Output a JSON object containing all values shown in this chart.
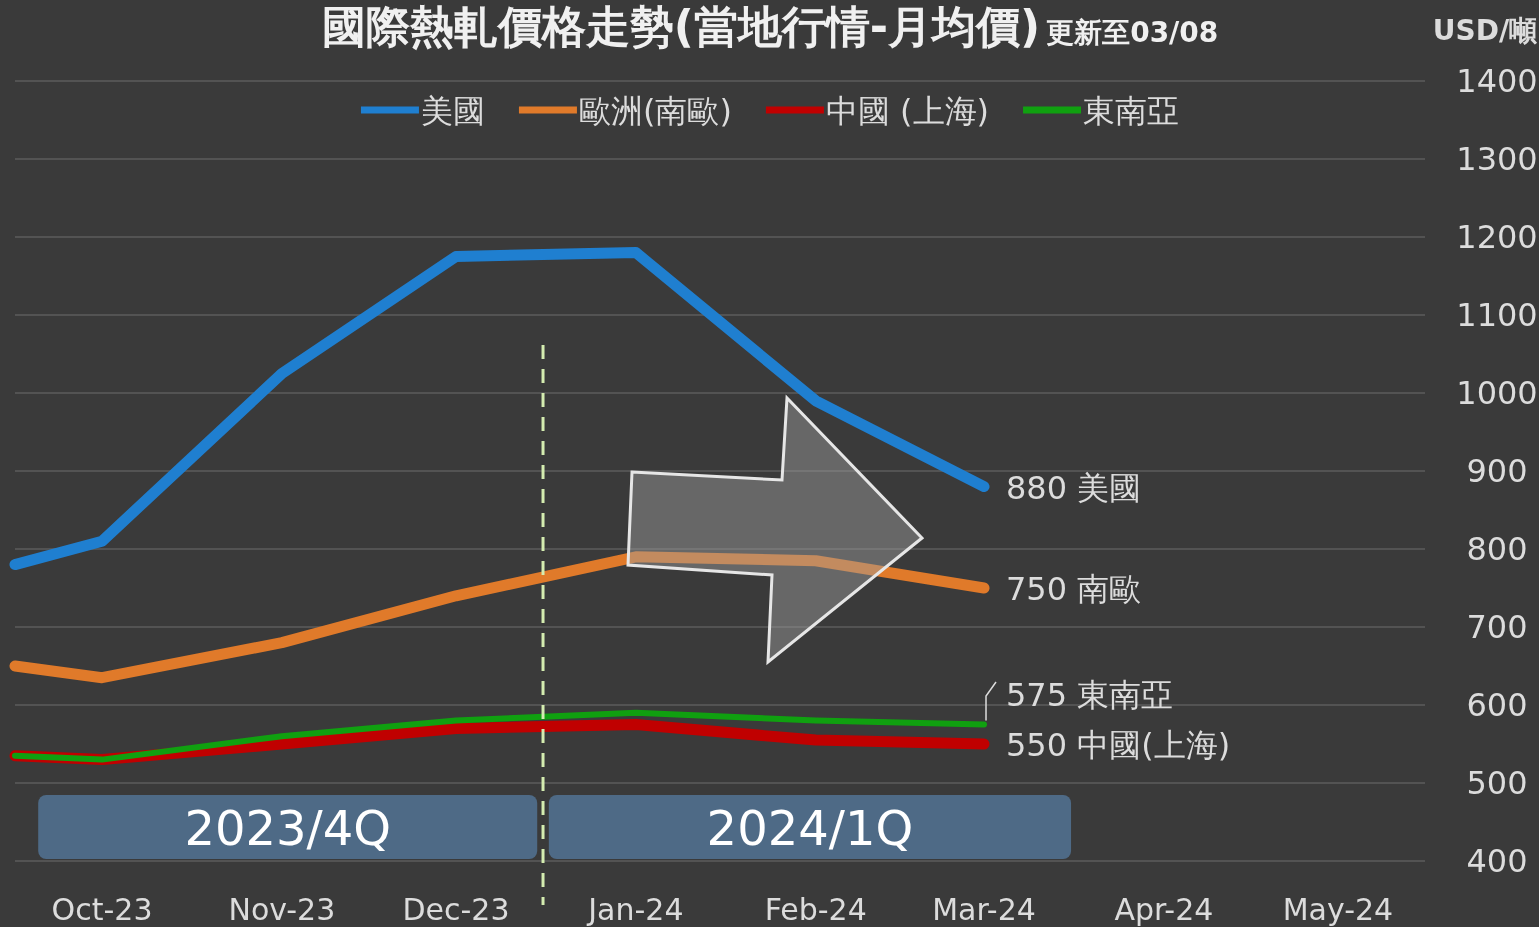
{
  "chart_data": {
    "type": "line",
    "title": "國際熱軋價格走勢(當地行情-月均價)",
    "subtitle": "更新至03/08",
    "ylabel": "USD/噸",
    "x": [
      "2023-09-16",
      "2023-10",
      "2023-11",
      "2023-12",
      "2024-01",
      "2024-02",
      "2024-03"
    ],
    "series": [
      {
        "name": "美國",
        "color": "#1f7fd0",
        "values": [
          780,
          810,
          1025,
          1175,
          1180,
          990,
          880
        ],
        "value_labels": [
          null,
          null,
          null,
          null,
          null,
          null,
          "880 美國"
        ]
      },
      {
        "name": "歐洲(南歐)",
        "color": "#e07a2a",
        "values": [
          650,
          635,
          680,
          740,
          790,
          785,
          750
        ],
        "value_labels": [
          null,
          null,
          null,
          null,
          null,
          null,
          "750 南歐"
        ]
      },
      {
        "name": "中國 (上海)",
        "color": "#c00000",
        "values": [
          535,
          530,
          550,
          570,
          575,
          555,
          550
        ],
        "value_labels": [
          null,
          null,
          null,
          null,
          null,
          null,
          "550 中國(上海)"
        ]
      },
      {
        "name": "東南亞",
        "color": "#10a010",
        "values": [
          535,
          530,
          560,
          580,
          590,
          580,
          575
        ],
        "value_labels": [
          null,
          null,
          null,
          null,
          null,
          null,
          "575 東南亞"
        ]
      }
    ],
    "xlim": [
      "2023-09-16",
      "2024-05-16"
    ],
    "xticks": [
      {
        "value": "2023-10",
        "label": "Oct-23"
      },
      {
        "value": "2023-11",
        "label": "Nov-23"
      },
      {
        "value": "2023-12",
        "label": "Dec-23"
      },
      {
        "value": "2024-01",
        "label": "Jan-24"
      },
      {
        "value": "2024-02",
        "label": "Feb-24"
      },
      {
        "value": "2024-03",
        "label": "Mar-24"
      },
      {
        "value": "2024-04",
        "label": "Apr-24"
      },
      {
        "value": "2024-05",
        "label": "May-24"
      }
    ],
    "ylim": [
      400,
      1400
    ],
    "yticks": [
      400,
      500,
      600,
      700,
      800,
      900,
      1000,
      1100,
      1200,
      1300,
      1400
    ],
    "grid": "y",
    "legend": "top",
    "ref_lines": [
      {
        "axis": "x",
        "value": "2023-12-16",
        "color": "#d4ecb0",
        "line_style": "dashed"
      }
    ],
    "bands": [
      {
        "axis": "x",
        "from": "2023-09-20",
        "to": "2023-12-15",
        "label": "2023/4Q",
        "color": "#4e6a86"
      },
      {
        "axis": "x",
        "from": "2023-12-17",
        "to": "2024-03-16",
        "label": "2024/1Q",
        "color": "#4e6a86"
      }
    ]
  }
}
